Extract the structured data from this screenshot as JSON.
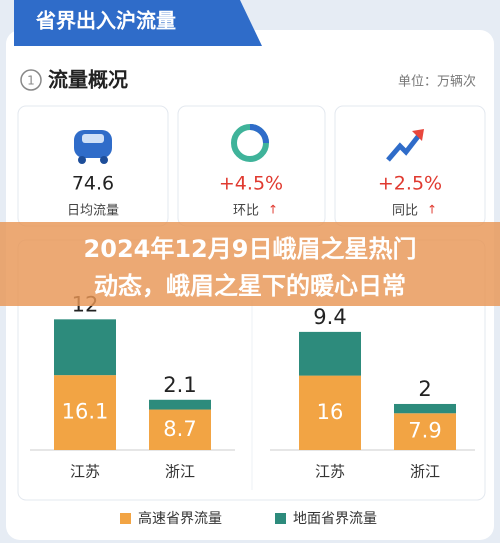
{
  "header": {
    "title": "省界出入沪流量"
  },
  "overview": {
    "index": "1",
    "title": "流量概况",
    "unit": "单位：万辆次",
    "cards": [
      {
        "value": "74.6",
        "label": "日均流量"
      },
      {
        "value": "+4.5%",
        "label": "环比"
      },
      {
        "value": "+2.5%",
        "label": "同比"
      }
    ]
  },
  "banner": {
    "lines": [
      "2024年12月9日峨眉之星热门",
      "动态，峨眉之星下的暖心日常"
    ]
  },
  "chart_data": {
    "type": "stacked-bar",
    "categories": [
      "江苏",
      "浙江",
      "江苏",
      "浙江"
    ],
    "series": [
      {
        "name": "高速省界流量",
        "color": "#f2a444",
        "values": [
          16.1,
          8.7,
          16,
          7.9
        ]
      },
      {
        "name": "地面省界流量",
        "color": "#2d8b7c",
        "values": [
          12,
          2.1,
          9.4,
          2
        ]
      }
    ]
  }
}
